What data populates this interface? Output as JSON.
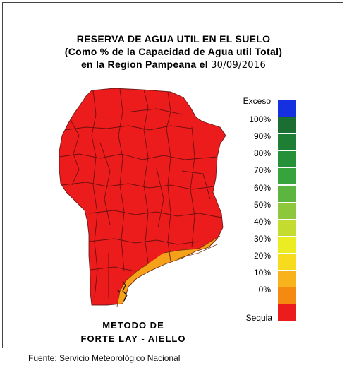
{
  "title": {
    "line1": "RESERVA DE AGUA UTIL EN EL SUELO",
    "line2": "(Como % de la Capacidad de  Agua util Total)",
    "line3_prefix": "en la Region Pampeana el ",
    "date": "30/09/2016"
  },
  "legend": {
    "items": [
      {
        "label": "Exceso",
        "color": "#1530e0"
      },
      {
        "label": "100%",
        "color": "#1b6e32"
      },
      {
        "label": "90%",
        "color": "#1e7f34"
      },
      {
        "label": "80%",
        "color": "#259038"
      },
      {
        "label": "70%",
        "color": "#37a33c"
      },
      {
        "label": "60%",
        "color": "#5cb53e"
      },
      {
        "label": "50%",
        "color": "#8dc83c"
      },
      {
        "label": "40%",
        "color": "#c3dc2f"
      },
      {
        "label": "30%",
        "color": "#ecec22"
      },
      {
        "label": "20%",
        "color": "#f6dc1c"
      },
      {
        "label": "10%",
        "color": "#f7b21c"
      },
      {
        "label": "0%",
        "color": "#f58a10"
      },
      {
        "label": "Sequia",
        "color": "#ec1c1c"
      }
    ]
  },
  "map": {
    "region": "Region Pampeana",
    "dominant_class": "Sequia",
    "dominant_color": "#ec1c1c",
    "south_coast_class": "0%",
    "south_coast_color": "#f5a21a",
    "south_coast_light_class": "10%",
    "south_coast_light_color": "#f7c01c"
  },
  "method": {
    "line1": "METODO DE",
    "line2": "FORTE LAY - AIELLO"
  },
  "source": "Fuente: Servicio Meteorológico Nacional"
}
